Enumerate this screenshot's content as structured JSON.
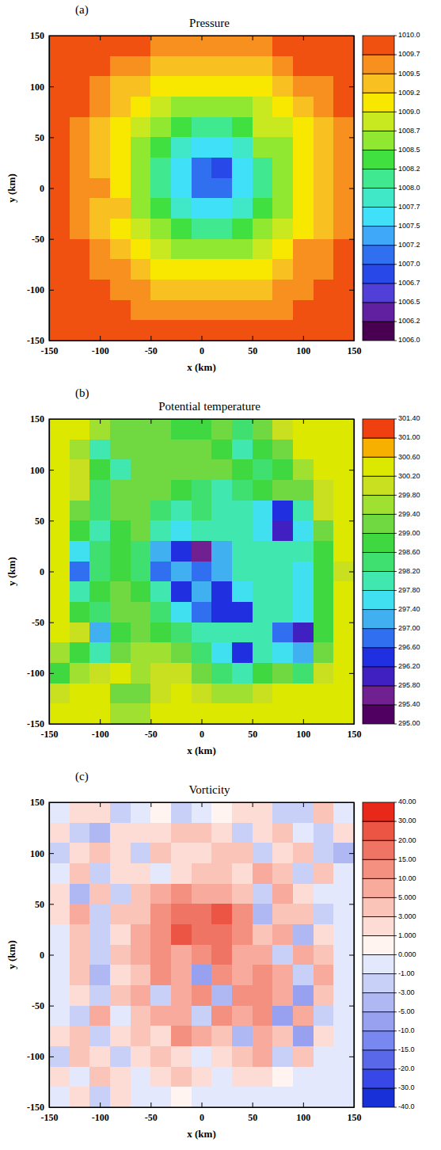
{
  "chart_data": [
    {
      "type": "heatmap",
      "label": "(a)",
      "title": "Pressure",
      "x_label": "x (km)",
      "y_label": "y (km)",
      "xlim": [
        -150,
        150
      ],
      "ylim": [
        -150,
        150
      ],
      "xticks": [
        -150,
        -100,
        -50,
        0,
        50,
        100,
        150
      ],
      "yticks": [
        -150,
        -100,
        -50,
        0,
        50,
        100,
        150
      ],
      "x": [
        -140,
        -120,
        -100,
        -80,
        -60,
        -40,
        -20,
        0,
        20,
        40,
        60,
        80,
        100,
        120,
        140
      ],
      "y": [
        140,
        120,
        100,
        80,
        60,
        40,
        20,
        0,
        -20,
        -40,
        -60,
        -80,
        -100,
        -120,
        -140
      ],
      "z": [
        [
          1009.9,
          1009.8,
          1009.8,
          1009.7,
          1009.7,
          1009.5,
          1009.5,
          1009.5,
          1009.5,
          1009.5,
          1009.6,
          1009.7,
          1009.8,
          1009.9,
          1010.0
        ],
        [
          1009.8,
          1009.8,
          1009.7,
          1009.6,
          1009.5,
          1009.4,
          1009.3,
          1009.3,
          1009.3,
          1009.3,
          1009.4,
          1009.5,
          1009.7,
          1009.8,
          1009.9
        ],
        [
          1009.8,
          1009.7,
          1009.6,
          1009.4,
          1009.3,
          1009.1,
          1009.0,
          1009.0,
          1009.0,
          1009.0,
          1009.1,
          1009.3,
          1009.5,
          1009.6,
          1009.8
        ],
        [
          1009.8,
          1009.7,
          1009.5,
          1009.3,
          1009.0,
          1008.8,
          1008.6,
          1008.5,
          1008.5,
          1008.6,
          1008.8,
          1009.0,
          1009.2,
          1009.5,
          1009.7
        ],
        [
          1009.7,
          1009.6,
          1009.4,
          1009.1,
          1008.8,
          1008.5,
          1008.2,
          1008.1,
          1008.1,
          1008.2,
          1008.9,
          1008.7,
          1009.0,
          1009.3,
          1009.6
        ],
        [
          1009.7,
          1009.5,
          1009.3,
          1009.0,
          1008.6,
          1008.2,
          1007.8,
          1007.6,
          1007.6,
          1007.8,
          1008.6,
          1008.6,
          1009.0,
          1009.3,
          1009.5
        ],
        [
          1009.7,
          1009.5,
          1009.3,
          1009.0,
          1008.5,
          1008.1,
          1007.6,
          1007.0,
          1006.8,
          1007.5,
          1008.1,
          1008.5,
          1009.0,
          1009.3,
          1009.5
        ],
        [
          1009.7,
          1009.5,
          1009.6,
          1009.0,
          1008.5,
          1008.1,
          1007.6,
          1007.0,
          1007.1,
          1007.6,
          1008.1,
          1008.5,
          1009.0,
          1009.3,
          1009.5
        ],
        [
          1009.7,
          1009.5,
          1009.3,
          1009.4,
          1008.6,
          1008.2,
          1007.8,
          1007.6,
          1007.6,
          1007.8,
          1008.2,
          1008.6,
          1009.0,
          1009.3,
          1009.5
        ],
        [
          1009.7,
          1009.6,
          1009.4,
          1009.1,
          1008.8,
          1008.5,
          1008.2,
          1008.1,
          1008.1,
          1008.2,
          1008.5,
          1008.8,
          1009.1,
          1009.4,
          1009.6
        ],
        [
          1009.8,
          1009.7,
          1009.5,
          1009.3,
          1009.0,
          1008.8,
          1008.6,
          1008.5,
          1008.5,
          1008.6,
          1008.8,
          1009.0,
          1009.5,
          1009.6,
          1009.7
        ],
        [
          1009.8,
          1009.7,
          1009.6,
          1009.5,
          1009.3,
          1009.1,
          1009.0,
          1009.0,
          1009.0,
          1009.0,
          1009.1,
          1009.3,
          1009.5,
          1009.6,
          1009.7
        ],
        [
          1009.8,
          1009.8,
          1009.7,
          1009.6,
          1009.5,
          1009.4,
          1009.3,
          1009.3,
          1009.3,
          1009.3,
          1009.4,
          1009.5,
          1009.6,
          1009.7,
          1009.8
        ],
        [
          1009.9,
          1009.8,
          1009.8,
          1009.7,
          1009.6,
          1009.5,
          1009.5,
          1009.5,
          1009.5,
          1009.5,
          1009.5,
          1009.6,
          1009.7,
          1009.8,
          1009.8
        ],
        [
          1010.0,
          1009.9,
          1009.8,
          1009.8,
          1009.8,
          1009.7,
          1009.7,
          1009.7,
          1009.7,
          1009.7,
          1009.7,
          1009.7,
          1009.8,
          1009.8,
          1009.9
        ]
      ],
      "cticks": [
        {
          "value": 1006,
          "label": "1006.0"
        },
        1006.2,
        1006.5,
        1006.7,
        {
          "value": 1007,
          "label": "1007.0"
        },
        1007.2,
        1007.5,
        1007.7,
        {
          "value": 1008,
          "label": "1008.0"
        },
        1008.2,
        1008.5,
        1008.7,
        {
          "value": 1009,
          "label": "1009.0"
        },
        1009.2,
        1009.5,
        1009.7,
        {
          "value": 1010,
          "label": "1010.0"
        }
      ],
      "colors": [
        "#4a0050",
        "#6020a0",
        "#5040d8",
        "#2848e8",
        "#3070f0",
        "#40a8f8",
        "#40e0f8",
        "#40e8c8",
        "#40e890",
        "#40e040",
        "#90e830",
        "#c8e820",
        "#f8e800",
        "#f8c020",
        "#f89020",
        "#f05010"
      ]
    },
    {
      "type": "heatmap",
      "label": "(b)",
      "title": "Potential temperature",
      "x_label": "x (km)",
      "y_label": "y (km)",
      "xlim": [
        -150,
        150
      ],
      "ylim": [
        -150,
        150
      ],
      "xticks": [
        -150,
        -100,
        -50,
        0,
        50,
        100,
        150
      ],
      "yticks": [
        -150,
        -100,
        -50,
        0,
        50,
        100,
        150
      ],
      "x": [
        -140,
        -120,
        -100,
        -80,
        -60,
        -40,
        -20,
        0,
        20,
        40,
        60,
        80,
        100,
        120,
        140
      ],
      "y": [
        140,
        120,
        100,
        80,
        60,
        40,
        20,
        0,
        -20,
        -40,
        -60,
        -80,
        -100,
        -120,
        -140
      ],
      "z": [
        [
          300.3,
          300.3,
          299.6,
          299.2,
          299.2,
          299.0,
          298.9,
          298.9,
          299.0,
          298.3,
          299.3,
          300.0,
          300.3,
          300.3,
          300.3
        ],
        [
          300.3,
          299.4,
          297.9,
          299.0,
          299.1,
          299.0,
          299.0,
          299.1,
          298.7,
          297.9,
          298.9,
          299.3,
          300.2,
          300.3,
          300.3
        ],
        [
          300.3,
          299.8,
          298.8,
          297.9,
          299.0,
          299.0,
          299.2,
          299.1,
          299.0,
          298.6,
          298.2,
          298.9,
          299.5,
          300.2,
          300.3
        ],
        [
          300.3,
          300.0,
          298.5,
          299.0,
          299.2,
          299.0,
          298.8,
          298.3,
          298.0,
          298.5,
          298.9,
          299.0,
          299.3,
          300.1,
          300.3
        ],
        [
          300.3,
          299.3,
          298.3,
          299.0,
          299.1,
          298.2,
          297.9,
          298.4,
          298.1,
          297.9,
          297.6,
          296.3,
          298.0,
          299.8,
          300.3
        ],
        [
          300.3,
          298.6,
          297.8,
          298.9,
          299.0,
          297.9,
          297.6,
          297.8,
          297.9,
          297.8,
          297.4,
          295.8,
          297.4,
          299.2,
          300.3
        ],
        [
          300.3,
          297.6,
          298.2,
          298.9,
          298.5,
          297.2,
          296.4,
          295.6,
          297.2,
          297.9,
          297.9,
          298.0,
          297.9,
          298.8,
          300.2
        ],
        [
          300.3,
          296.8,
          298.5,
          298.9,
          298.4,
          296.8,
          297.0,
          296.8,
          297.0,
          297.8,
          297.9,
          297.9,
          297.6,
          298.6,
          300.1
        ],
        [
          300.3,
          297.8,
          298.6,
          299.0,
          298.8,
          297.8,
          296.2,
          297.2,
          296.4,
          297.5,
          297.9,
          297.8,
          297.5,
          298.6,
          300.2
        ],
        [
          300.3,
          298.9,
          298.5,
          299.0,
          299.0,
          298.3,
          297.6,
          296.6,
          296.3,
          296.4,
          297.8,
          297.9,
          297.4,
          298.7,
          300.3
        ],
        [
          300.3,
          299.8,
          297.2,
          298.9,
          299.1,
          298.9,
          298.5,
          297.9,
          297.8,
          297.9,
          297.9,
          296.6,
          295.8,
          298.6,
          300.3
        ],
        [
          299.4,
          298.8,
          297.8,
          299.2,
          299.4,
          299.5,
          299.1,
          298.4,
          297.6,
          296.2,
          297.9,
          297.6,
          297.0,
          299.2,
          300.3
        ],
        [
          298.6,
          299.4,
          299.9,
          300.2,
          299.4,
          299.9,
          299.8,
          299.0,
          298.5,
          298.0,
          298.9,
          299.2,
          298.4,
          299.8,
          300.3
        ],
        [
          299.8,
          300.2,
          300.3,
          299.3,
          299.2,
          300.1,
          300.3,
          300.0,
          299.6,
          299.5,
          300.0,
          300.2,
          300.2,
          300.3,
          300.3
        ],
        [
          300.3,
          300.3,
          300.3,
          299.6,
          299.5,
          300.3,
          300.3,
          300.3,
          300.3,
          300.3,
          300.3,
          300.3,
          300.3,
          300.3,
          300.3
        ]
      ],
      "cticks": [
        {
          "value": 295,
          "label": "295.00"
        },
        {
          "value": 295.4,
          "label": "295.40"
        },
        {
          "value": 295.8,
          "label": "295.80"
        },
        {
          "value": 296.2,
          "label": "296.20"
        },
        {
          "value": 296.6,
          "label": "296.60"
        },
        {
          "value": 297,
          "label": "297.00"
        },
        {
          "value": 297.4,
          "label": "297.40"
        },
        {
          "value": 297.8,
          "label": "297.80"
        },
        {
          "value": 298.2,
          "label": "298.20"
        },
        {
          "value": 298.6,
          "label": "298.60"
        },
        {
          "value": 299,
          "label": "299.00"
        },
        {
          "value": 299.4,
          "label": "299.40"
        },
        {
          "value": 299.8,
          "label": "299.80"
        },
        {
          "value": 300.2,
          "label": "300.20"
        },
        {
          "value": 300.6,
          "label": "300.60"
        },
        {
          "value": 301,
          "label": "301.00"
        },
        {
          "value": 301.4,
          "label": "301.40"
        }
      ],
      "colors": [
        "#500060",
        "#702090",
        "#4020c0",
        "#2030e0",
        "#3070f0",
        "#40b0f0",
        "#40e0f0",
        "#40e8b0",
        "#40e070",
        "#40d840",
        "#70d840",
        "#a0e030",
        "#c8e020",
        "#dce800",
        "#f8b000",
        "#f04010"
      ]
    },
    {
      "type": "heatmap",
      "label": "(c)",
      "title": "Vorticity",
      "x_label": "x (km)",
      "y_label": "y (km)",
      "xlim": [
        -150,
        150
      ],
      "ylim": [
        -150,
        150
      ],
      "xticks": [
        -150,
        -100,
        -50,
        0,
        50,
        100,
        150
      ],
      "yticks": [
        -150,
        -100,
        -50,
        0,
        50,
        100,
        150
      ],
      "x": [
        -140,
        -120,
        -100,
        -80,
        -60,
        -40,
        -20,
        0,
        20,
        40,
        60,
        80,
        100,
        120,
        140
      ],
      "y": [
        140,
        120,
        100,
        80,
        60,
        40,
        20,
        0,
        -20,
        -40,
        -60,
        -80,
        -100,
        -120,
        -140
      ],
      "z": [
        [
          -0.5,
          2,
          1,
          -2,
          -0.5,
          0.5,
          -2,
          -0.5,
          0.5,
          1,
          2,
          -3,
          -2,
          3,
          -0.5
        ],
        [
          2,
          -3,
          -5,
          1,
          2,
          2,
          3,
          4,
          2,
          -2,
          1,
          3,
          -1,
          -3,
          2
        ],
        [
          -3,
          2,
          3,
          2,
          -2,
          3,
          2,
          1,
          3,
          4,
          -3,
          2,
          4,
          -2,
          -4
        ],
        [
          -0.5,
          3,
          -2,
          2,
          1,
          -1,
          2,
          4,
          3,
          2,
          6,
          3,
          -2,
          3,
          -0.5
        ],
        [
          1,
          -4,
          4,
          -2,
          3,
          6,
          12,
          8,
          7,
          4,
          -3,
          5,
          2,
          -0.5,
          -0.5
        ],
        [
          2,
          5,
          -2,
          3,
          4,
          12,
          18,
          16,
          22,
          10,
          -5,
          4,
          3,
          -2,
          -0.5
        ],
        [
          -0.5,
          4,
          -3,
          2,
          6,
          14,
          22,
          18,
          15,
          12,
          4,
          8,
          -4,
          2,
          -0.5
        ],
        [
          -1,
          3,
          -2,
          4,
          5,
          10,
          8,
          12,
          16,
          8,
          6,
          -3,
          5,
          3,
          -0.5
        ],
        [
          -0.5,
          4,
          -4,
          2,
          3,
          12,
          5,
          -6,
          14,
          8,
          12,
          6,
          -3,
          6,
          -0.5
        ],
        [
          -0.5,
          2,
          -3,
          3,
          6,
          -2,
          8,
          10,
          -5,
          12,
          10,
          8,
          -6,
          4,
          -0.5
        ],
        [
          -0.5,
          -2,
          5,
          -1,
          4,
          8,
          5,
          -3,
          12,
          6,
          10,
          -8,
          5,
          -3,
          -0.5
        ],
        [
          2,
          3,
          -2,
          2,
          3,
          2,
          10,
          8,
          3,
          -4,
          6,
          4,
          -8,
          2,
          -0.5
        ],
        [
          -3,
          4,
          1,
          -2,
          2,
          3,
          2,
          -1,
          2,
          3,
          5,
          -2,
          3,
          -1,
          -0.5
        ],
        [
          2,
          -1,
          3,
          1,
          -0.5,
          2,
          3,
          2,
          -0.5,
          1,
          2,
          0.5,
          -0.5,
          -0.5,
          -0.5
        ],
        [
          -0.5,
          2,
          -2,
          1,
          -0.5,
          -0.5,
          0.5,
          -0.5,
          -0.5,
          -0.5,
          -0.5,
          -0.5,
          -0.5,
          -0.5,
          -0.5
        ]
      ],
      "cticks": [
        {
          "value": -40,
          "label": "-40.0"
        },
        {
          "value": -30,
          "label": "-30.0"
        },
        {
          "value": -20,
          "label": "-20.0"
        },
        {
          "value": -15,
          "label": "-15.0"
        },
        {
          "value": -10,
          "label": "-10.0"
        },
        {
          "value": -5,
          "label": "-5.00"
        },
        {
          "value": -3,
          "label": "-3.00"
        },
        {
          "value": -1,
          "label": "-1.00"
        },
        {
          "value": 0,
          "label": "0.000"
        },
        {
          "value": 1,
          "label": "1.000"
        },
        {
          "value": 3,
          "label": "3.000"
        },
        {
          "value": 5,
          "label": "5.000"
        },
        {
          "value": 10,
          "label": "10.00"
        },
        {
          "value": 15,
          "label": "15.00"
        },
        {
          "value": 20,
          "label": "20.00"
        },
        {
          "value": 30,
          "label": "30.00"
        },
        {
          "value": 40,
          "label": "40.00"
        }
      ],
      "colors": [
        "#1830d8",
        "#3848e8",
        "#5868e8",
        "#7888f0",
        "#98a0f0",
        "#b0b8f4",
        "#c8d0f8",
        "#e4e8fc",
        "#fff4f0",
        "#fcdcd4",
        "#fac4b8",
        "#f8aa9c",
        "#f49080",
        "#f07464",
        "#ec5444",
        "#e82818"
      ]
    }
  ]
}
